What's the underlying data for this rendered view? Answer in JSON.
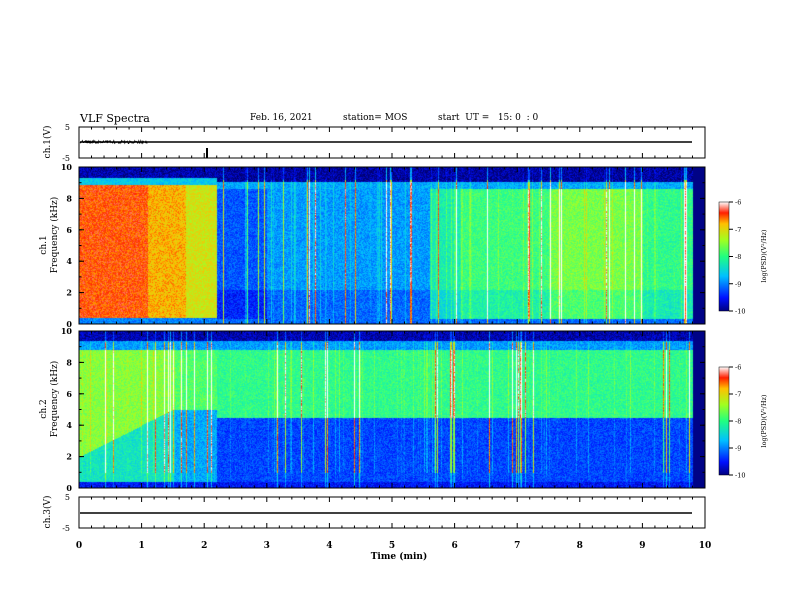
{
  "header": {
    "title": "VLF Spectra",
    "date": "Feb. 16, 2021",
    "station": "station= MOS",
    "start": "start  UT =   15: 0  : 0"
  },
  "chart_data": [
    {
      "type": "line",
      "panel": "ch1-waveform",
      "ylabel": "ch.1(V)",
      "yticks": [
        "5",
        "-5"
      ],
      "ylim": [
        -5,
        5
      ],
      "xlim": [
        0,
        10
      ]
    },
    {
      "type": "heatmap",
      "panel": "ch1-spectrogram",
      "ylabel_top": "ch.1",
      "ylabel": "Frequency (kHz)",
      "ylim": [
        0,
        10
      ],
      "yticks": [
        "0",
        "2",
        "4",
        "6",
        "8",
        "10"
      ],
      "xlim": [
        0,
        10
      ],
      "colorbar": {
        "label": "log(PSD)(V²/Hz)",
        "ticks": [
          "-6",
          "-7",
          "-8",
          "-9",
          "-10"
        ],
        "range": [
          -10,
          -6
        ]
      }
    },
    {
      "type": "heatmap",
      "panel": "ch2-spectrogram",
      "ylabel_top": "ch.2",
      "ylabel": "Frequency (kHz)",
      "ylim": [
        0,
        10
      ],
      "yticks": [
        "0",
        "2",
        "4",
        "6",
        "8",
        "10"
      ],
      "xlim": [
        0,
        10
      ],
      "colorbar": {
        "label": "log(PSD)(V²/Hz)",
        "ticks": [
          "-6",
          "-7",
          "-8",
          "-9",
          "-10"
        ],
        "range": [
          -10,
          -6
        ]
      }
    },
    {
      "type": "line",
      "panel": "ch3-waveform",
      "ylabel": "ch.3(V)",
      "yticks": [
        "5",
        "-5"
      ],
      "ylim": [
        -5,
        5
      ],
      "xlim": [
        0,
        10
      ],
      "xlabel": "Time (min)",
      "xticks": [
        "0",
        "1",
        "2",
        "3",
        "4",
        "5",
        "6",
        "7",
        "8",
        "9",
        "10"
      ]
    }
  ]
}
